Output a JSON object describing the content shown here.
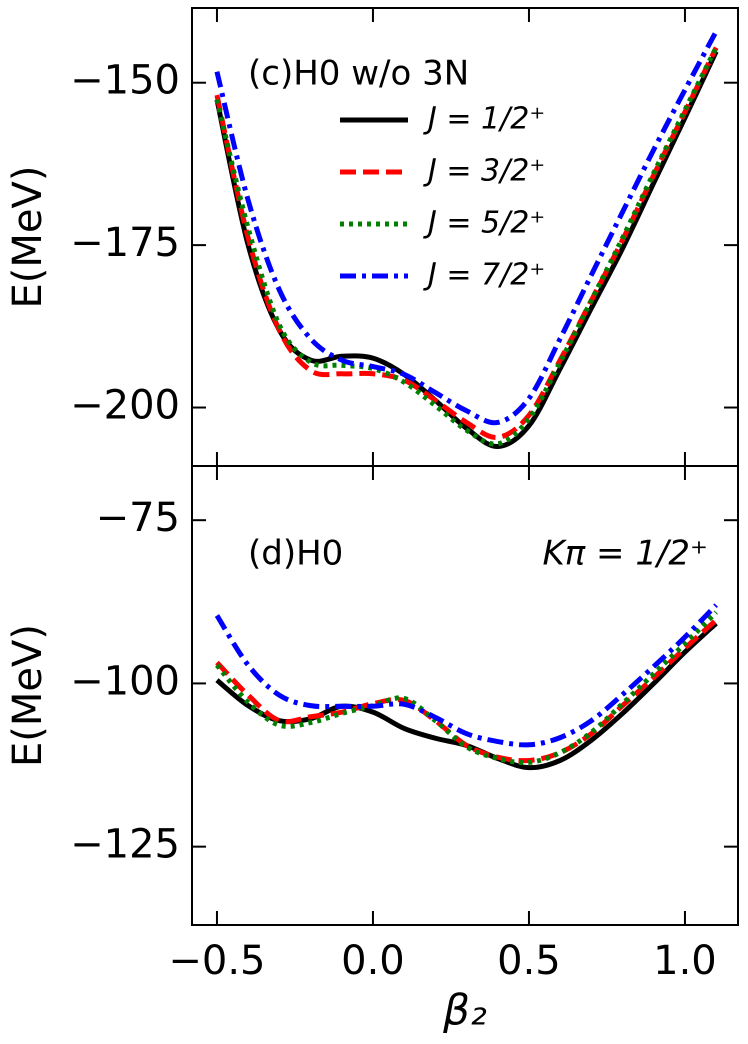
{
  "chart_data": [
    {
      "type": "line",
      "annotation": "(c)H0 w/o 3N",
      "ylabel": "E(MeV)",
      "x": [
        -0.5,
        -0.4,
        -0.3,
        -0.2,
        -0.1,
        0.0,
        0.1,
        0.2,
        0.3,
        0.4,
        0.5,
        0.6,
        0.7,
        0.8,
        0.9,
        1.0,
        1.1
      ],
      "series": [
        {
          "name": "J = 1/2⁺",
          "color": "#000000",
          "style": "solid",
          "values": [
            -152.6,
            -175,
            -188.1,
            -192.7,
            -192.1,
            -192.4,
            -194.9,
            -198.9,
            -203.2,
            -206,
            -202.8,
            -194,
            -184.7,
            -175.5,
            -165.4,
            -155.4,
            -145.2
          ]
        },
        {
          "name": "J = 3/2⁺",
          "color": "#ff0000",
          "style": "dashed",
          "values": [
            -151.9,
            -173.9,
            -188.1,
            -194.3,
            -194.8,
            -194.8,
            -195.8,
            -198.9,
            -202.3,
            -204.6,
            -201.2,
            -192.7,
            -183.5,
            -174.2,
            -164.2,
            -154.5,
            -144.6
          ]
        },
        {
          "name": "J = 5/2⁺",
          "color": "#008000",
          "style": "dotted",
          "values": [
            -152.6,
            -172.4,
            -187.3,
            -193,
            -193.5,
            -194,
            -196.1,
            -199.7,
            -203.5,
            -205.6,
            -201.7,
            -193,
            -183.5,
            -173.9,
            -163.9,
            -154.2,
            -144.6
          ]
        },
        {
          "name": "J = 7/2⁺",
          "color": "#0000ff",
          "style": "dashdot",
          "values": [
            -148.3,
            -168.1,
            -181.9,
            -189.4,
            -192.7,
            -193.7,
            -194.9,
            -197.7,
            -200.5,
            -202.3,
            -198.6,
            -189.4,
            -179.6,
            -169.9,
            -160.3,
            -151.1,
            -142.1
          ]
        }
      ],
      "legend": "upper center",
      "xlim": [
        -0.58,
        1.17
      ],
      "xticks": [
        -0.5,
        0,
        0.5,
        1
      ],
      "show_xticklabels": false,
      "ylim": [
        -209,
        -138.5
      ],
      "yticks": [
        {
          "value": -200,
          "label": "−200"
        },
        {
          "value": -175,
          "label": "−175"
        },
        {
          "value": -150,
          "label": "−150"
        }
      ]
    },
    {
      "type": "line",
      "annotation": "(d)H0",
      "annotation_right": "Kπ = 1/2⁺",
      "ylabel": "E(MeV)",
      "xlabel": "β₂",
      "x": [
        -0.5,
        -0.4,
        -0.3,
        -0.2,
        -0.1,
        0.0,
        0.1,
        0.2,
        0.3,
        0.4,
        0.5,
        0.6,
        0.7,
        0.8,
        0.9,
        1.0,
        1.1
      ],
      "series": [
        {
          "name": "J = 1/2⁺",
          "color": "#000000",
          "style": "solid",
          "values": [
            -99.5,
            -103.4,
            -105.7,
            -105.4,
            -103.5,
            -104.4,
            -106.9,
            -108.4,
            -109.5,
            -111.5,
            -112.9,
            -111.8,
            -108.7,
            -104.6,
            -100,
            -95.2,
            -90.8
          ]
        },
        {
          "name": "J = 3/2⁺",
          "color": "#ff0000",
          "style": "dashed",
          "values": [
            -96.8,
            -101.8,
            -105.7,
            -105.1,
            -104.4,
            -103.1,
            -102.6,
            -105.7,
            -109.5,
            -111.3,
            -111.8,
            -110.6,
            -107.7,
            -103.4,
            -99.1,
            -94.6,
            -90.3
          ]
        },
        {
          "name": "J = 5/2⁺",
          "color": "#008000",
          "style": "dotted",
          "values": [
            -97.2,
            -102.9,
            -106.4,
            -106,
            -104.6,
            -103.4,
            -102.3,
            -105.7,
            -109.7,
            -111.5,
            -112.1,
            -110.6,
            -107.5,
            -103.1,
            -98.5,
            -93.9,
            -89.1
          ]
        },
        {
          "name": "J = 7/2⁺",
          "color": "#0000ff",
          "style": "dashdot",
          "values": [
            -89.6,
            -97.2,
            -101.8,
            -103.4,
            -103.5,
            -103.5,
            -103.2,
            -105.2,
            -107.7,
            -108.9,
            -109.4,
            -108.3,
            -105.7,
            -101.7,
            -97.4,
            -92.9,
            -88
          ]
        }
      ],
      "xlim": [
        -0.58,
        1.17
      ],
      "xticks": [
        {
          "value": -0.5,
          "label": "−0.5"
        },
        {
          "value": 0,
          "label": "0.0"
        },
        0.5,
        {
          "value": 1,
          "label": "1.0"
        }
      ],
      "ylim": [
        -137,
        -66.7
      ],
      "yticks": [
        {
          "value": -125,
          "label": "−125"
        },
        {
          "value": -100,
          "label": "−100"
        },
        {
          "value": -75,
          "label": "−75"
        }
      ]
    }
  ]
}
